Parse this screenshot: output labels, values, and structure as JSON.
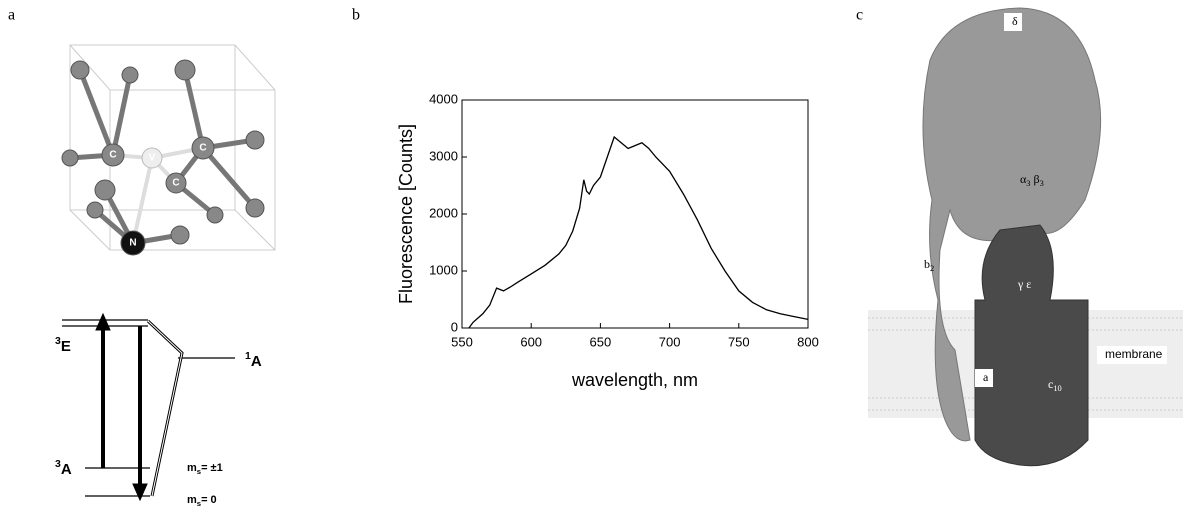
{
  "panel_labels": [
    "a",
    "b",
    "c"
  ],
  "molecule": {
    "atoms": [
      "C",
      "C",
      "C",
      "V",
      "N"
    ]
  },
  "energy_diagram": {
    "levels": [
      {
        "sup": "3",
        "main": "E"
      },
      {
        "sup": "1",
        "main": "A"
      },
      {
        "sup": "3",
        "main": "A"
      }
    ],
    "spin_states": [
      {
        "main": "m",
        "sub": "s",
        "rest": "= ±1"
      },
      {
        "main": "m",
        "sub": "s",
        "rest": "=   0"
      }
    ]
  },
  "protein": {
    "labels": [
      {
        "main": "δ"
      },
      {
        "main": "α",
        "sub": "3",
        "rest": " β",
        "sub2": "3"
      },
      {
        "main": "b",
        "sub": "2"
      },
      {
        "main": "γ  ε"
      },
      {
        "main": "a"
      },
      {
        "main": "c",
        "sub": "10"
      },
      {
        "main": "membrane"
      }
    ]
  },
  "chart_data": {
    "type": "line",
    "xlabel": "wavelength, nm",
    "ylabel": "Fluorescence [Counts]",
    "color": "#000000",
    "x": [
      555,
      558,
      565,
      570,
      575,
      580,
      585,
      590,
      600,
      610,
      620,
      625,
      630,
      635,
      638,
      640,
      642,
      645,
      650,
      655,
      660,
      665,
      670,
      675,
      680,
      685,
      690,
      700,
      710,
      720,
      730,
      740,
      750,
      760,
      770,
      780,
      790,
      800
    ],
    "values": [
      0,
      100,
      250,
      400,
      700,
      650,
      720,
      800,
      950,
      1100,
      1300,
      1450,
      1700,
      2100,
      2600,
      2400,
      2350,
      2500,
      2650,
      3000,
      3350,
      3250,
      3150,
      3200,
      3250,
      3150,
      3000,
      2750,
      2350,
      1900,
      1400,
      1000,
      650,
      450,
      320,
      250,
      200,
      150
    ],
    "xlim": [
      550,
      800
    ],
    "ylim": [
      0,
      4000
    ],
    "xticks": [
      550,
      600,
      650,
      700,
      750,
      800
    ],
    "yticks": [
      0,
      1000,
      2000,
      3000,
      4000
    ]
  }
}
